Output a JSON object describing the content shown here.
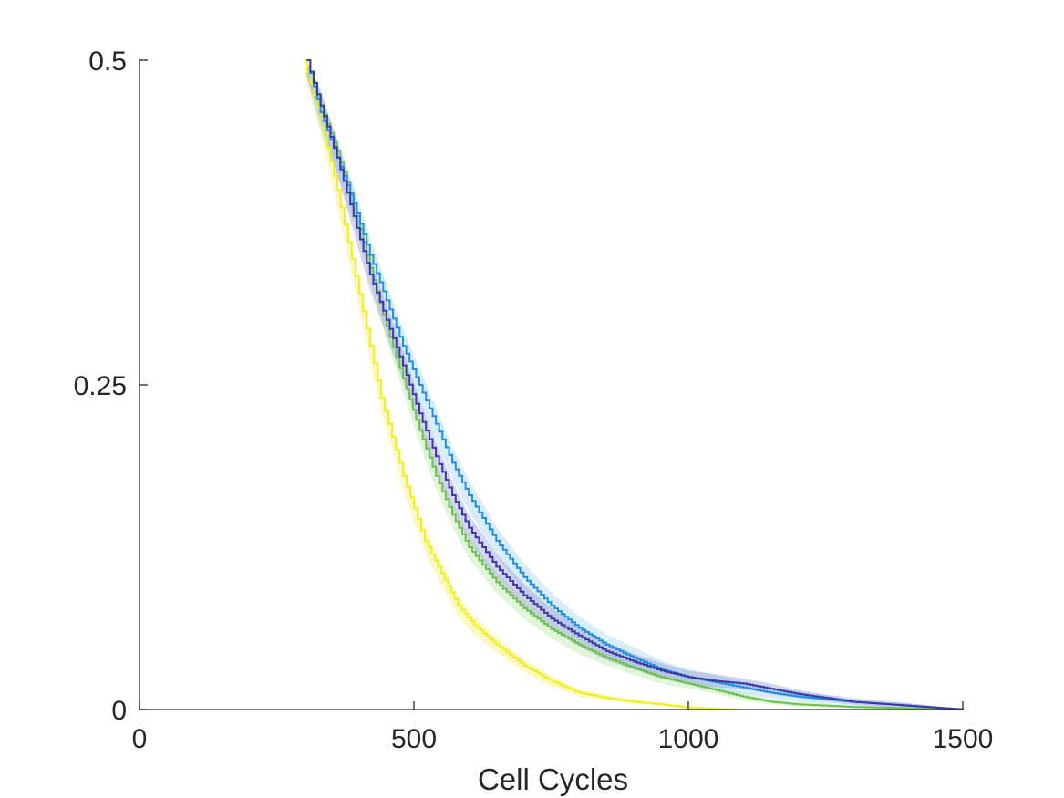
{
  "chart_data": {
    "type": "line",
    "title": "",
    "xlabel": "Cell Cycles",
    "ylabel": "",
    "xlim": [
      0,
      1500
    ],
    "ylim": [
      0,
      0.5
    ],
    "xticks": [
      0,
      500,
      1000,
      1500
    ],
    "xtick_labels": [
      "0",
      "500",
      "1000",
      "1500"
    ],
    "yticks": [
      0,
      0.25,
      0.5
    ],
    "ytick_labels": [
      "0",
      "0.25",
      "0.5"
    ],
    "grid": false,
    "legend": "none",
    "series": [
      {
        "color": "#f2ef1a",
        "band_color": "#f7f27a",
        "x": [
          300,
          330,
          360,
          380,
          400,
          420,
          440,
          460,
          480,
          500,
          520,
          550,
          580,
          610,
          650,
          700,
          750,
          800,
          850,
          900,
          950,
          1000,
          1050,
          1090
        ],
        "y": [
          0.5,
          0.455,
          0.4,
          0.36,
          0.32,
          0.28,
          0.24,
          0.21,
          0.18,
          0.155,
          0.13,
          0.105,
          0.08,
          0.065,
          0.05,
          0.034,
          0.022,
          0.013,
          0.009,
          0.006,
          0.004,
          0.0015,
          0.0005,
          0.0
        ],
        "band": [
          0.012,
          0.012,
          0.012,
          0.012,
          0.011,
          0.011,
          0.011,
          0.01,
          0.01,
          0.01,
          0.009,
          0.009,
          0.008,
          0.007,
          0.006,
          0.005,
          0.004,
          0.003,
          0.002,
          0.002,
          0.001,
          0.001,
          0.0,
          0.0
        ]
      },
      {
        "color": "#6cc24a",
        "band_color": "#bde8b0",
        "x": [
          305,
          330,
          360,
          390,
          420,
          450,
          480,
          510,
          540,
          570,
          600,
          650,
          700,
          750,
          800,
          850,
          900,
          950,
          1000,
          1050,
          1100,
          1150,
          1200,
          1300,
          1400,
          1500
        ],
        "y": [
          0.5,
          0.465,
          0.43,
          0.39,
          0.34,
          0.295,
          0.255,
          0.215,
          0.18,
          0.15,
          0.125,
          0.098,
          0.078,
          0.062,
          0.05,
          0.04,
          0.032,
          0.025,
          0.02,
          0.015,
          0.01,
          0.006,
          0.004,
          0.002,
          0.001,
          0.0
        ],
        "band": [
          0.01,
          0.01,
          0.01,
          0.01,
          0.01,
          0.01,
          0.01,
          0.01,
          0.01,
          0.009,
          0.009,
          0.008,
          0.008,
          0.007,
          0.007,
          0.006,
          0.005,
          0.005,
          0.004,
          0.003,
          0.003,
          0.002,
          0.002,
          0.001,
          0.001,
          0.0
        ]
      },
      {
        "color": "#1f8fe0",
        "band_color": "#a9d4f2",
        "x": [
          305,
          330,
          360,
          390,
          420,
          450,
          480,
          510,
          540,
          570,
          600,
          650,
          700,
          750,
          800,
          850,
          900,
          950,
          1000,
          1050,
          1100,
          1150,
          1200,
          1300,
          1400,
          1500
        ],
        "y": [
          0.5,
          0.46,
          0.425,
          0.39,
          0.35,
          0.315,
          0.28,
          0.25,
          0.22,
          0.19,
          0.165,
          0.13,
          0.102,
          0.08,
          0.063,
          0.05,
          0.04,
          0.031,
          0.025,
          0.021,
          0.017,
          0.013,
          0.01,
          0.006,
          0.003,
          0.0
        ],
        "band": [
          0.014,
          0.014,
          0.014,
          0.014,
          0.014,
          0.013,
          0.013,
          0.013,
          0.013,
          0.012,
          0.012,
          0.011,
          0.011,
          0.01,
          0.009,
          0.008,
          0.008,
          0.007,
          0.006,
          0.006,
          0.005,
          0.004,
          0.004,
          0.003,
          0.002,
          0.0
        ]
      },
      {
        "color": "#3a3aa8",
        "band_color": "#9da3d8",
        "x": [
          305,
          330,
          360,
          390,
          420,
          450,
          480,
          510,
          540,
          570,
          600,
          650,
          700,
          750,
          800,
          850,
          900,
          950,
          1000,
          1050,
          1100,
          1150,
          1200,
          1300,
          1400,
          1500
        ],
        "y": [
          0.5,
          0.465,
          0.425,
          0.38,
          0.335,
          0.3,
          0.265,
          0.228,
          0.195,
          0.165,
          0.14,
          0.11,
          0.088,
          0.07,
          0.057,
          0.045,
          0.037,
          0.03,
          0.025,
          0.022,
          0.02,
          0.016,
          0.012,
          0.006,
          0.003,
          0.0
        ],
        "band": [
          0.012,
          0.012,
          0.012,
          0.012,
          0.012,
          0.012,
          0.012,
          0.011,
          0.011,
          0.011,
          0.01,
          0.01,
          0.009,
          0.008,
          0.008,
          0.007,
          0.006,
          0.006,
          0.005,
          0.005,
          0.004,
          0.004,
          0.003,
          0.002,
          0.002,
          0.0
        ]
      }
    ]
  }
}
